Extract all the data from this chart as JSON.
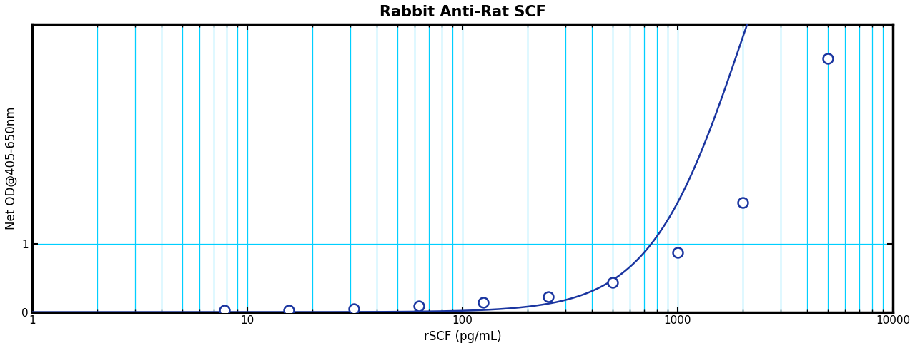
{
  "title": "Rabbit Anti-Rat SCF",
  "xlabel": "rSCF (pg/mL)",
  "ylabel": "Net OD@405-650nm",
  "x_data": [
    7.8,
    15.6,
    31.25,
    62.5,
    125,
    250,
    500,
    1000,
    2000,
    5000
  ],
  "y_data": [
    0.03,
    0.03,
    0.05,
    0.09,
    0.14,
    0.22,
    0.43,
    0.87,
    1.6,
    3.7
  ],
  "xmin": 1,
  "xmax": 10000,
  "ymin": 0,
  "ymax": 4.2,
  "curve_color": "#1A35A0",
  "marker_color": "#1A35A0",
  "grid_color": "#00CFFF",
  "background_color": "#FFFFFF",
  "title_fontsize": 15,
  "label_fontsize": 12,
  "tick_fontsize": 11,
  "xtick_labels": [
    "1",
    "10",
    "100",
    "1000",
    "10000"
  ],
  "xtick_values": [
    1,
    10,
    100,
    1000,
    10000
  ],
  "ytick_values": [
    0,
    1
  ],
  "ytick_labels": [
    "0",
    "1"
  ]
}
